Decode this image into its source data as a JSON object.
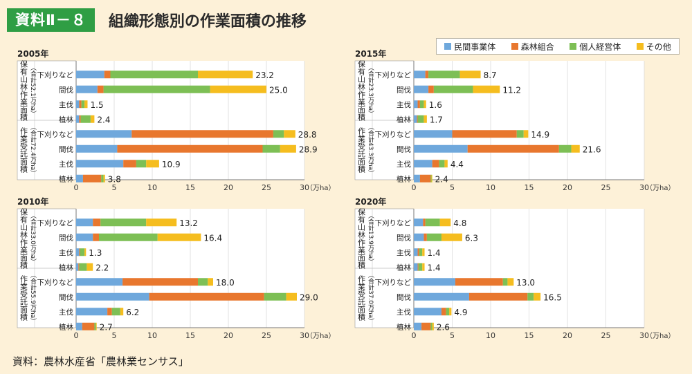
{
  "header": {
    "badge": "資料Ⅱ－８",
    "title": "組織形態別の作業面積の推移"
  },
  "legend": [
    {
      "label": "民間事業体",
      "color": "#6fa8dc"
    },
    {
      "label": "森林組合",
      "color": "#e8772e"
    },
    {
      "label": "個人経営体",
      "color": "#7dbf55"
    },
    {
      "label": "その他",
      "color": "#f5bd1f"
    }
  ],
  "source": "資料：農林水産省「農林業センサス」",
  "axis": {
    "unit": "（万ha）",
    "ticks": [
      "0",
      "5",
      "10",
      "15",
      "20",
      "25",
      "30"
    ]
  },
  "chart_data": [
    {
      "type": "bar",
      "stacked": true,
      "orientation": "horizontal",
      "year": "2005年",
      "xlim": [
        0,
        30
      ],
      "groups": [
        {
          "label": "保有山林作業面積",
          "subtotal": "（合計52.1万ha）",
          "categories": [
            "下刈りなど",
            "間伐",
            "主伐",
            "植林"
          ],
          "totals": [
            "23.2",
            "25.0",
            "1.5",
            "2.4"
          ],
          "series": [
            {
              "name": "民間事業体",
              "values": [
                3.7,
                2.8,
                0.4,
                0.4
              ]
            },
            {
              "name": "森林組合",
              "values": [
                0.8,
                0.8,
                0.3,
                0.2
              ]
            },
            {
              "name": "個人経営体",
              "values": [
                11.5,
                14.0,
                0.4,
                1.3
              ]
            },
            {
              "name": "その他",
              "values": [
                7.2,
                7.4,
                0.4,
                0.5
              ]
            }
          ]
        },
        {
          "label": "作業受託面積",
          "subtotal": "（合計72.4万ha）",
          "categories": [
            "下刈りなど",
            "間伐",
            "主伐",
            "植林"
          ],
          "totals": [
            "28.8",
            "28.9",
            "10.9",
            "3.8"
          ],
          "series": [
            {
              "name": "民間事業体",
              "values": [
                7.3,
                5.4,
                6.2,
                0.9
              ]
            },
            {
              "name": "森林組合",
              "values": [
                18.6,
                19.1,
                1.7,
                2.4
              ]
            },
            {
              "name": "個人経営体",
              "values": [
                1.4,
                2.3,
                1.3,
                0.3
              ]
            },
            {
              "name": "その他",
              "values": [
                1.5,
                2.1,
                1.7,
                0.2
              ]
            }
          ]
        }
      ]
    },
    {
      "type": "bar",
      "stacked": true,
      "orientation": "horizontal",
      "year": "2015年",
      "xlim": [
        0,
        30
      ],
      "groups": [
        {
          "label": "保有山林作業面積",
          "subtotal": "（合計23.3万ha）",
          "categories": [
            "下刈りなど",
            "間伐",
            "主伐",
            "植林"
          ],
          "totals": [
            "8.7",
            "11.2",
            "1.6",
            "1.7"
          ],
          "series": [
            {
              "name": "民間事業体",
              "values": [
                1.5,
                1.9,
                0.5,
                0.4
              ]
            },
            {
              "name": "森林組合",
              "values": [
                0.4,
                0.7,
                0.3,
                0.1
              ]
            },
            {
              "name": "個人経営体",
              "values": [
                4.1,
                5.1,
                0.5,
                0.8
              ]
            },
            {
              "name": "その他",
              "values": [
                2.7,
                3.5,
                0.3,
                0.4
              ]
            }
          ]
        },
        {
          "label": "作業受託面積",
          "subtotal": "（合計43.3万ha）",
          "categories": [
            "下刈りなど",
            "間伐",
            "主伐",
            "植林"
          ],
          "totals": [
            "14.9",
            "21.6",
            "4.4",
            "2.4"
          ],
          "series": [
            {
              "name": "民間事業体",
              "values": [
                5.0,
                7.0,
                2.4,
                0.8
              ]
            },
            {
              "name": "森林組合",
              "values": [
                8.4,
                11.9,
                0.9,
                1.4
              ]
            },
            {
              "name": "個人経営体",
              "values": [
                0.9,
                1.6,
                0.7,
                0.1
              ]
            },
            {
              "name": "その他",
              "values": [
                0.6,
                1.1,
                0.4,
                0.1
              ]
            }
          ]
        }
      ]
    },
    {
      "type": "bar",
      "stacked": true,
      "orientation": "horizontal",
      "year": "2010年",
      "xlim": [
        0,
        30
      ],
      "groups": [
        {
          "label": "保有山林作業面積",
          "subtotal": "（合計33.0万ha）",
          "categories": [
            "下刈りなど",
            "間伐",
            "主伐",
            "植林"
          ],
          "totals": [
            "13.2",
            "16.4",
            "1.3",
            "2.2"
          ],
          "series": [
            {
              "name": "民間事業体",
              "values": [
                2.2,
                2.2,
                0.4,
                0.3
              ]
            },
            {
              "name": "森林組合",
              "values": [
                1.0,
                0.8,
                0.1,
                0.1
              ]
            },
            {
              "name": "個人経営体",
              "values": [
                6.0,
                7.7,
                0.6,
                1.0
              ]
            },
            {
              "name": "その他",
              "values": [
                4.0,
                5.7,
                0.2,
                0.8
              ]
            }
          ]
        },
        {
          "label": "作業受託面積",
          "subtotal": "（合計55.9万ha）",
          "categories": [
            "下刈りなど",
            "間伐",
            "主伐",
            "植林"
          ],
          "totals": [
            "18.0",
            "29.0",
            "6.2",
            "2.7"
          ],
          "series": [
            {
              "name": "民間事業体",
              "values": [
                6.1,
                9.6,
                4.1,
                0.8
              ]
            },
            {
              "name": "森林組合",
              "values": [
                9.9,
                15.1,
                0.6,
                1.6
              ]
            },
            {
              "name": "個人経営体",
              "values": [
                1.3,
                2.9,
                1.1,
                0.2
              ]
            },
            {
              "name": "その他",
              "values": [
                0.7,
                1.4,
                0.4,
                0.1
              ]
            }
          ]
        }
      ]
    },
    {
      "type": "bar",
      "stacked": true,
      "orientation": "horizontal",
      "year": "2020年",
      "xlim": [
        0,
        30
      ],
      "groups": [
        {
          "label": "保有山林作業面積",
          "subtotal": "（合計13.9万ha）",
          "categories": [
            "下刈りなど",
            "間伐",
            "主伐",
            "植林"
          ],
          "totals": [
            "4.8",
            "6.3",
            "1.4",
            "1.4"
          ],
          "series": [
            {
              "name": "民間事業体",
              "values": [
                1.2,
                1.3,
                0.5,
                0.5
              ]
            },
            {
              "name": "森林組合",
              "values": [
                0.3,
                0.4,
                0.2,
                0.1
              ]
            },
            {
              "name": "個人経営体",
              "values": [
                1.9,
                1.9,
                0.4,
                0.5
              ]
            },
            {
              "name": "その他",
              "values": [
                1.4,
                2.7,
                0.3,
                0.3
              ]
            }
          ]
        },
        {
          "label": "作業受託面積",
          "subtotal": "（合計37.0万ha）",
          "categories": [
            "下刈りなど",
            "間伐",
            "主伐",
            "植林"
          ],
          "totals": [
            "13.0",
            "16.5",
            "4.9",
            "2.6"
          ],
          "series": [
            {
              "name": "民間事業体",
              "values": [
                5.4,
                7.2,
                3.6,
                1.0
              ]
            },
            {
              "name": "森林組合",
              "values": [
                6.2,
                7.6,
                0.6,
                1.2
              ]
            },
            {
              "name": "個人経営体",
              "values": [
                0.6,
                0.8,
                0.4,
                0.2
              ]
            },
            {
              "name": "その他",
              "values": [
                0.8,
                0.9,
                0.3,
                0.2
              ]
            }
          ]
        }
      ]
    }
  ]
}
